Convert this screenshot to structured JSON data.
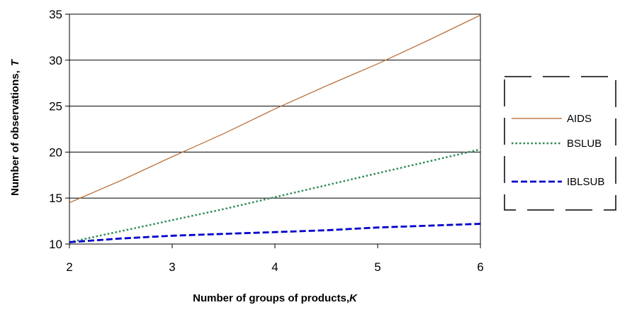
{
  "chart_data": {
    "type": "line",
    "xlabel": "Number of groups of products,",
    "xlabel_var": "K",
    "ylabel": "Number of observations,",
    "ylabel_var": "T",
    "xlim": [
      2,
      6
    ],
    "ylim": [
      10,
      35
    ],
    "x_ticks": [
      "2",
      "3",
      "4",
      "5",
      "6"
    ],
    "y_ticks": [
      "10",
      "15",
      "20",
      "25",
      "30",
      "35"
    ],
    "grid": "horizontal",
    "legend_position": "right",
    "series": [
      {
        "name": "AIDS",
        "color": "#b5652b",
        "style": "solid",
        "x": [
          2,
          2.5,
          3,
          3.5,
          4,
          4.5,
          5,
          5.5,
          6
        ],
        "y": [
          14.5,
          16.9,
          19.5,
          22.0,
          24.7,
          27.2,
          29.6,
          32.2,
          34.9
        ]
      },
      {
        "name": "BSLUB",
        "color": "#2e8b57",
        "style": "dotted",
        "x": [
          2,
          2.5,
          3,
          3.5,
          4,
          4.5,
          5,
          5.5,
          6
        ],
        "y": [
          10.2,
          11.4,
          12.6,
          13.8,
          15.1,
          16.4,
          17.7,
          19.0,
          20.3
        ]
      },
      {
        "name": "IBLSUB",
        "color": "#0000cc",
        "style": "dashed",
        "x": [
          2,
          2.5,
          3,
          3.5,
          4,
          4.5,
          5,
          5.5,
          6
        ],
        "y": [
          10.2,
          10.6,
          10.9,
          11.1,
          11.3,
          11.5,
          11.8,
          12.0,
          12.2
        ]
      }
    ]
  }
}
